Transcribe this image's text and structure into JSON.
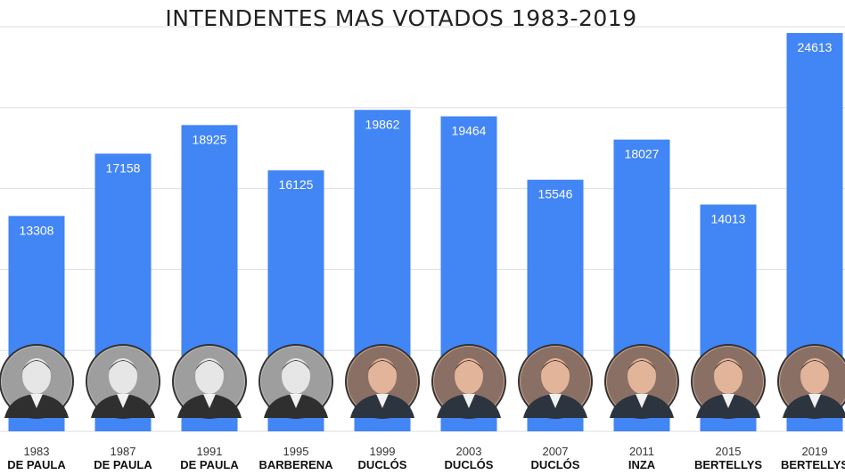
{
  "chart_data": {
    "type": "bar",
    "title": "INTENDENTES MAS VOTADOS 1983-2019",
    "categories": [
      "1983",
      "1987",
      "1991",
      "1995",
      "1999",
      "2003",
      "2007",
      "2011",
      "2015",
      "2019"
    ],
    "names": [
      "DE PAULA",
      "DE PAULA",
      "DE PAULA",
      "BARBERENA",
      "DUCLÓS",
      "DUCLÓS",
      "DUCLÓS",
      "INZA",
      "BERTELLYS",
      "BERTELLYS"
    ],
    "values": [
      13308,
      17158,
      18925,
      16125,
      19862,
      19464,
      15546,
      18027,
      14013,
      24613
    ],
    "ylim": [
      0,
      25000
    ],
    "grid": true,
    "bar_color": "#4285f4",
    "photo_style": [
      "grayscale",
      "grayscale",
      "grayscale",
      "grayscale",
      "color",
      "color",
      "color",
      "color",
      "color",
      "color"
    ]
  }
}
